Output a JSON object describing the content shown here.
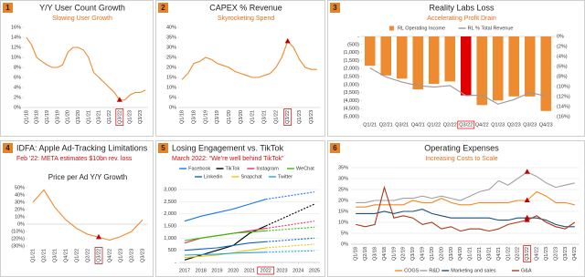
{
  "chart_data": [
    {
      "type": "line",
      "badge": "1",
      "title": "Y/Y User Count Growth",
      "subtitle": "Slowing User Growth",
      "subtitle_color": "#e0701e",
      "categories": [
        "Q1/18",
        null,
        "Q3/18",
        null,
        "Q1/19",
        null,
        "Q3/19",
        null,
        "Q1/20",
        null,
        "Q3/20",
        null,
        "Q1/21",
        null,
        "Q3/21",
        null,
        "Q1/22",
        null,
        "Q3/22",
        null,
        "Q1/23",
        null,
        "Q3/23",
        null
      ],
      "values": [
        14,
        12.5,
        10,
        9.2,
        8.5,
        8,
        8,
        8.5,
        11,
        12,
        12,
        11.5,
        10,
        7,
        6,
        5,
        4,
        3,
        1.5,
        1.5,
        2.5,
        3,
        3,
        3.5
      ],
      "color": "#ee8a2f",
      "ylim": [
        0,
        16
      ],
      "yticks": [
        {
          "value": 0,
          "label": "0%"
        },
        {
          "value": 2,
          "label": "2%"
        },
        {
          "value": 4,
          "label": "4%"
        },
        {
          "value": 6,
          "label": "6%"
        },
        {
          "value": 8,
          "label": "8%"
        },
        {
          "value": 10,
          "label": "10%"
        },
        {
          "value": 12,
          "label": "12%"
        },
        {
          "value": 14,
          "label": "14%"
        },
        {
          "value": 16,
          "label": "16%"
        }
      ],
      "grid": false,
      "highlight_index": 18,
      "highlight_color": "#c00000",
      "highlight_marker": true
    },
    {
      "type": "line",
      "badge": "2",
      "title": "CAPEX % Revenue",
      "subtitle": "Skyrocketing Spend",
      "subtitle_color": "#e0701e",
      "categories": [
        "Q1/18",
        null,
        "Q3/18",
        null,
        "Q1/19",
        null,
        "Q3/19",
        null,
        "Q1/20",
        null,
        "Q3/20",
        null,
        "Q1/21",
        null,
        "Q3/21",
        null,
        "Q1/22",
        null,
        "Q3/22",
        null,
        "Q1/23",
        null,
        "Q3/23",
        null
      ],
      "values": [
        14,
        17,
        22,
        23,
        25,
        24,
        22,
        21,
        20,
        18,
        17,
        16,
        15,
        15,
        16,
        17,
        20,
        25,
        33,
        30,
        24,
        20,
        19,
        19
      ],
      "color": "#ee8a2f",
      "ylim": [
        0,
        40
      ],
      "yticks": [
        {
          "value": 0,
          "label": "0%"
        },
        {
          "value": 5,
          "label": "5%"
        },
        {
          "value": 10,
          "label": "10%"
        },
        {
          "value": 15,
          "label": "15%"
        },
        {
          "value": 20,
          "label": "20%"
        },
        {
          "value": 25,
          "label": "25%"
        },
        {
          "value": 30,
          "label": "30%"
        },
        {
          "value": 35,
          "label": "35%"
        },
        {
          "value": 40,
          "label": "40%"
        }
      ],
      "grid": false,
      "highlight_index": 18,
      "highlight_color": "#c00000",
      "highlight_marker": true
    },
    {
      "type": "bar",
      "badge": "3",
      "title": "Reality Labs Loss",
      "subtitle": "Accelerating Profit Drain",
      "subtitle_color": "#e0701e",
      "categories": [
        "Q1/21",
        "Q2/21",
        "Q3/21",
        "Q4/21",
        "Q1/22",
        "Q2/22",
        "Q3/22",
        "Q4/22",
        "Q1/23",
        "Q2/23",
        "Q3/23",
        "Q4/23"
      ],
      "series": [
        {
          "name": "RL Operating Income",
          "color": "#ee8a2f",
          "values": [
            -1827,
            -2432,
            -2631,
            -3304,
            -2960,
            -2806,
            -3672,
            -4279,
            -3992,
            -3739,
            -3742,
            -4646
          ]
        },
        {
          "name": "RL % Total Revenue",
          "color": "#999999",
          "axis": "y2",
          "values": [
            -6.3,
            -8.1,
            -9.1,
            -9.8,
            -10.1,
            -9.8,
            -11.8,
            -11.7,
            -13.5,
            -12.6,
            -11.2,
            -11.9
          ]
        }
      ],
      "ylim": [
        -5000,
        0
      ],
      "yticks": [
        {
          "value": 0,
          "label": "-"
        },
        {
          "value": -500,
          "label": "(500)"
        },
        {
          "value": -1000,
          "label": "(1,000)"
        },
        {
          "value": -1500,
          "label": "(1,500)"
        },
        {
          "value": -2000,
          "label": "(2,000)"
        },
        {
          "value": -2500,
          "label": "(2,500)"
        },
        {
          "value": -3000,
          "label": "(3,000)"
        },
        {
          "value": -3500,
          "label": "(3,500)"
        },
        {
          "value": -4000,
          "label": "(4,000)"
        },
        {
          "value": -4500,
          "label": "(4,500)"
        },
        {
          "value": -5000,
          "label": "(5,000)"
        }
      ],
      "y2lim": [
        -16,
        0
      ],
      "y2ticks": [
        {
          "value": 0,
          "label": "0%"
        },
        {
          "value": -2,
          "label": "(2%)"
        },
        {
          "value": -4,
          "label": "(4%)"
        },
        {
          "value": -6,
          "label": "(6%)"
        },
        {
          "value": -8,
          "label": "(8%)"
        },
        {
          "value": -10,
          "label": "(10%)"
        },
        {
          "value": -12,
          "label": "(12%)"
        },
        {
          "value": -14,
          "label": "(14%)"
        },
        {
          "value": -16,
          "label": "(16%)"
        }
      ],
      "grid": false,
      "legend": "top",
      "highlight_index": 6,
      "highlight_color": "#e00000",
      "highlight_marker": false
    },
    {
      "type": "line",
      "badge": "4",
      "title": "IDFA: Apple  Ad-Tracking Limitations",
      "subtitle": "Feb '22: META estimates $10bn rev. loss",
      "subtitle_color": "#d01010",
      "plot_title": "Price per Ad Y/Y Growth",
      "categories": [
        "Q1/21",
        "Q2/21",
        "Q3/21",
        "Q4/21",
        "Q1/22",
        "Q2/22",
        "Q3/22",
        "Q4/22",
        "Q1/23",
        "Q2/23",
        "Q3/23"
      ],
      "values": [
        30,
        47,
        23,
        6,
        -6,
        -14,
        -18,
        -22,
        -17,
        -10,
        6
      ],
      "color": "#ee8a2f",
      "ylim": [
        -30,
        50
      ],
      "yticks": [
        {
          "value": -30,
          "label": "(30%)"
        },
        {
          "value": -20,
          "label": "(20%)"
        },
        {
          "value": -10,
          "label": "(10%)"
        },
        {
          "value": 0,
          "label": "0%"
        },
        {
          "value": 10,
          "label": "10%"
        },
        {
          "value": 20,
          "label": "20%"
        },
        {
          "value": 30,
          "label": "30%"
        },
        {
          "value": 40,
          "label": "40%"
        },
        {
          "value": 50,
          "label": "50%"
        }
      ],
      "grid": false,
      "highlight_index": 6,
      "highlight_color": "#c00000",
      "highlight_marker": true
    },
    {
      "type": "line",
      "badge": "5",
      "title": "Losing Engagement vs. TikTok",
      "subtitle": "March 2022: “We’re well behind TikTok”",
      "subtitle_color": "#d01010",
      "x": [
        2017,
        2018,
        2019,
        2020,
        2021,
        2022,
        2023,
        2024,
        2025
      ],
      "xlim": [
        2017,
        2025
      ],
      "xticks": [
        2017,
        2018,
        2019,
        2020,
        2021,
        2022,
        2023,
        2024,
        2025
      ],
      "series": [
        {
          "name": "Facebook",
          "color": "#1877f2",
          "values": [
            1700,
            1900,
            2050,
            2200,
            2400,
            2600,
            2700,
            2800,
            2900
          ]
        },
        {
          "name": "TikTok",
          "color": "#000000",
          "values": [
            100,
            300,
            500,
            700,
            1200,
            1500,
            1800,
            2100,
            2400
          ]
        },
        {
          "name": "Instagram",
          "color": "#e1306c",
          "values": [
            800,
            1000,
            1100,
            1200,
            1300,
            1400,
            1500,
            1600,
            1700
          ]
        },
        {
          "name": "WeChat",
          "color": "#2dc100",
          "values": [
            900,
            1000,
            1100,
            1200,
            1250,
            1300,
            1350,
            1400,
            1450
          ]
        },
        {
          "name": "Linkedin",
          "color": "#0a66c2",
          "values": [
            500,
            550,
            600,
            700,
            800,
            850,
            900,
            950,
            1000
          ]
        },
        {
          "name": "Snapchat",
          "color": "#e8c800",
          "values": [
            200,
            250,
            300,
            400,
            500,
            600,
            650,
            700,
            750
          ]
        },
        {
          "name": "Twitter",
          "color": "#1da1f2",
          "values": [
            300,
            320,
            340,
            380,
            400,
            420,
            440,
            460,
            480
          ]
        }
      ],
      "ylim": [
        0,
        3000
      ],
      "yticks": [
        {
          "value": 0,
          "label": "-"
        },
        500,
        {
          "value": 1000,
          "label": "1,000"
        },
        {
          "value": 1500,
          "label": "1,500"
        },
        {
          "value": 2000,
          "label": "2,000"
        },
        {
          "value": 2500,
          "label": "2,500"
        },
        {
          "value": 3000,
          "label": "3,000"
        }
      ],
      "grid": true,
      "legend": "top",
      "highlight_index": 5,
      "highlight_color": "#c00000",
      "highlight_marker": false,
      "dashed_after_highlight": true
    },
    {
      "type": "line",
      "badge": "6",
      "title": "Operating Expenses",
      "subtitle": "Increasing Costs to Scale",
      "subtitle_color": "#e0701e",
      "categories": [
        "Q1/18",
        "Q2/18",
        "Q3/18",
        "Q4/18",
        "Q1/19",
        "Q2/19",
        "Q3/19",
        "Q4/19",
        "Q1/20",
        "Q2/20",
        "Q3/20",
        "Q4/20",
        "Q1/21",
        "Q2/21",
        "Q3/21",
        "Q4/21",
        "Q1/22",
        "Q2/22",
        "Q3/22",
        "Q4/22",
        "Q1/23",
        "Q2/23",
        "Q3/23",
        "Q4/23"
      ],
      "series": [
        {
          "name": "COGS",
          "color": "#f08a24",
          "values": [
            17,
            17,
            18,
            18,
            18,
            18,
            20,
            19,
            19,
            21,
            19,
            18,
            18,
            19,
            19,
            19,
            19,
            20,
            20,
            24,
            22,
            19,
            19,
            18
          ]
        },
        {
          "name": "R&D",
          "color": "#a0a0a0",
          "values": [
            19,
            19,
            20,
            20,
            20,
            21,
            21,
            22,
            21,
            22,
            21,
            20,
            22,
            24,
            25,
            29,
            27,
            30,
            33,
            31,
            28,
            26,
            27,
            28
          ]
        },
        {
          "name": "Marketing and sales",
          "color": "#1f4e79",
          "values": [
            14,
            14,
            14,
            15,
            14,
            15,
            15,
            16,
            14,
            13,
            12,
            12,
            12,
            12,
            12,
            11,
            11,
            12,
            12,
            12,
            11,
            9,
            8,
            8
          ]
        },
        {
          "name": "G&A",
          "color": "#a63a1a",
          "values": [
            9,
            8,
            9,
            26,
            12,
            13,
            12,
            9,
            10,
            7,
            8,
            6,
            7,
            7,
            6,
            7,
            9,
            10,
            11,
            13,
            10,
            8,
            7,
            10
          ]
        }
      ],
      "ylim": [
        0,
        35
      ],
      "yticks": [
        {
          "value": 0,
          "label": "0%"
        },
        {
          "value": 5,
          "label": "5%"
        },
        {
          "value": 10,
          "label": "10%"
        },
        {
          "value": 15,
          "label": "15%"
        },
        {
          "value": 20,
          "label": "20%"
        },
        {
          "value": 25,
          "label": "25%"
        },
        {
          "value": 30,
          "label": "30%"
        },
        {
          "value": 35,
          "label": "35%"
        }
      ],
      "grid": true,
      "legend": "bottom",
      "highlight_index": 18,
      "highlight_color": "#c00000",
      "highlight_marker": true
    }
  ]
}
